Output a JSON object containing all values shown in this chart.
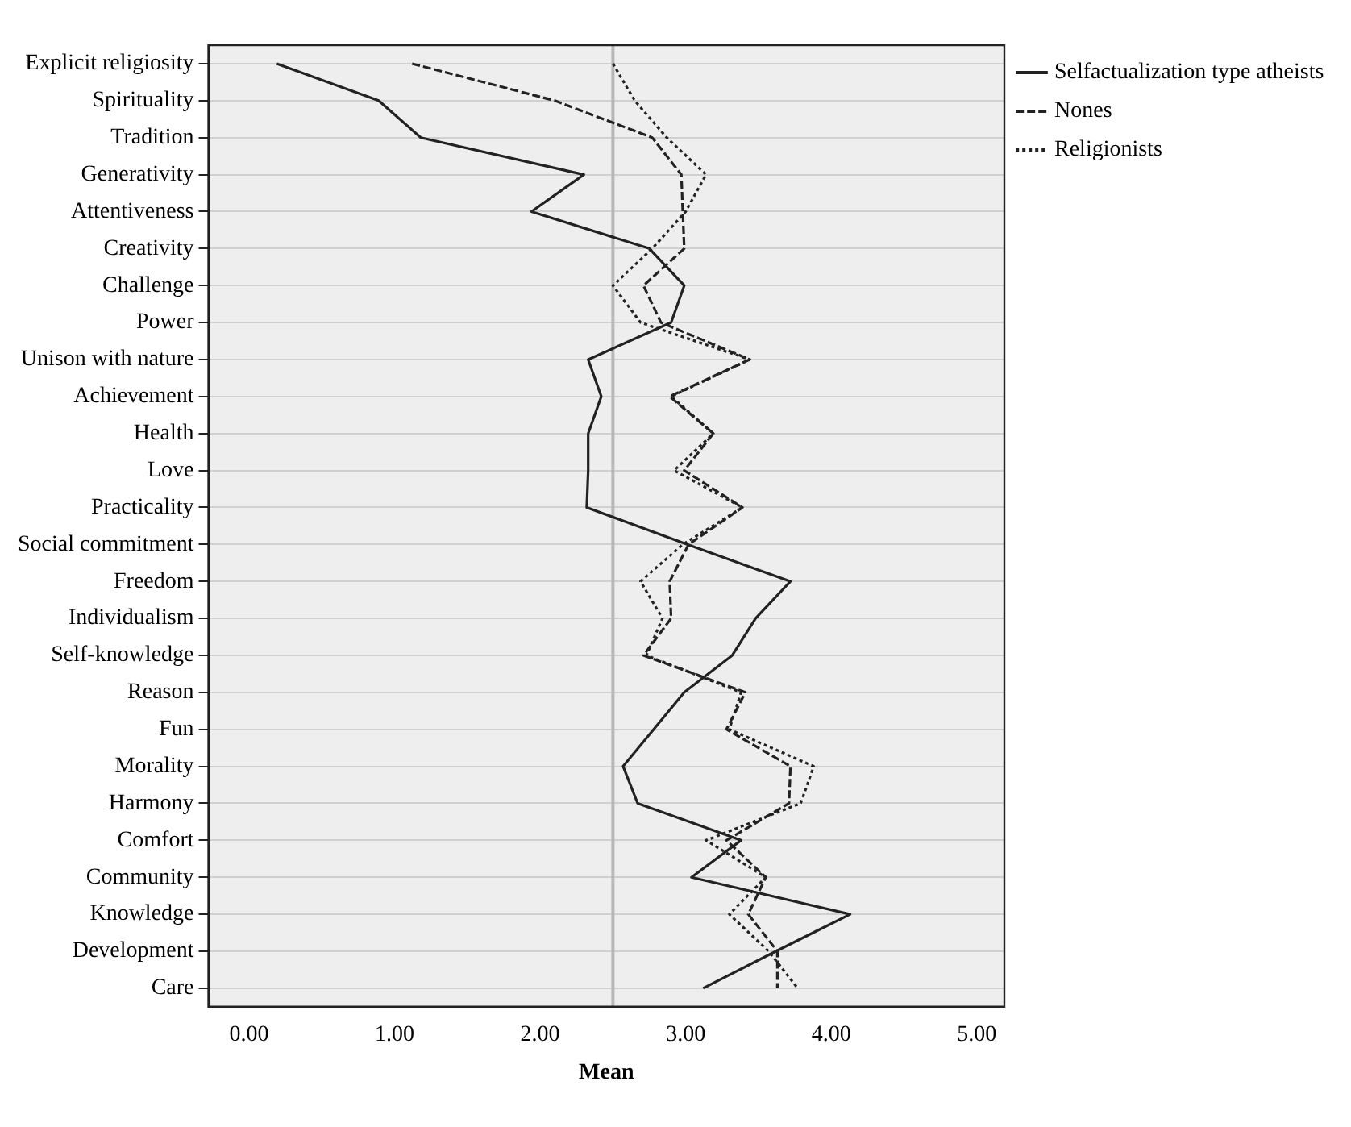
{
  "chart_data": {
    "type": "line",
    "orientation": "horizontal",
    "xlabel": "Mean",
    "categories": [
      "Explicit religiosity",
      "Spirituality",
      "Tradition",
      "Generativity",
      "Attentiveness",
      "Creativity",
      "Challenge",
      "Power",
      "Unison with nature",
      "Achievement",
      "Health",
      "Love",
      "Practicality",
      "Social commitment",
      "Freedom",
      "Individualism",
      "Self-knowledge",
      "Reason",
      "Fun",
      "Morality",
      "Harmony",
      "Comfort",
      "Community",
      "Knowledge",
      "Development",
      "Care"
    ],
    "series": [
      {
        "name": "Selfactualization type atheists",
        "color": "#222222",
        "line_style": "solid",
        "values": [
          0.19,
          0.89,
          1.18,
          2.3,
          1.94,
          2.75,
          2.99,
          2.9,
          2.33,
          2.42,
          2.33,
          2.33,
          2.32,
          3.01,
          3.72,
          3.48,
          3.32,
          2.99,
          2.78,
          2.57,
          2.67,
          3.38,
          3.04,
          4.13,
          3.62,
          3.12
        ]
      },
      {
        "name": "Nones",
        "color": "#222222",
        "line_style": "dashed",
        "values": [
          1.12,
          2.1,
          2.77,
          2.97,
          2.98,
          2.99,
          2.71,
          2.83,
          3.44,
          2.89,
          3.19,
          2.99,
          3.39,
          3.02,
          2.89,
          2.9,
          2.71,
          3.41,
          3.28,
          3.72,
          3.71,
          3.28,
          3.55,
          3.43,
          3.63,
          3.63
        ]
      },
      {
        "name": "Religionists",
        "color": "#222222",
        "line_style": "dotted",
        "values": [
          2.5,
          2.65,
          2.87,
          3.14,
          3.0,
          2.77,
          2.5,
          2.69,
          3.44,
          2.9,
          3.19,
          2.92,
          3.39,
          2.98,
          2.69,
          2.84,
          2.73,
          3.38,
          3.3,
          3.88,
          3.79,
          3.14,
          3.55,
          3.3,
          3.57,
          3.77
        ]
      }
    ],
    "xlim": [
      -0.28,
      5.19
    ],
    "xticks": [
      {
        "value": 0,
        "label": "0.00"
      },
      {
        "value": 1,
        "label": "1.00"
      },
      {
        "value": 2,
        "label": "2.00"
      },
      {
        "value": 3,
        "label": "3.00"
      },
      {
        "value": 4,
        "label": "4.00"
      },
      {
        "value": 5,
        "label": "5.00"
      }
    ],
    "ref_lines": [
      {
        "axis": "x",
        "value": 2.5,
        "color": "#b8b8b8"
      }
    ],
    "grid": "y",
    "legend": "top right",
    "marker": "none"
  }
}
